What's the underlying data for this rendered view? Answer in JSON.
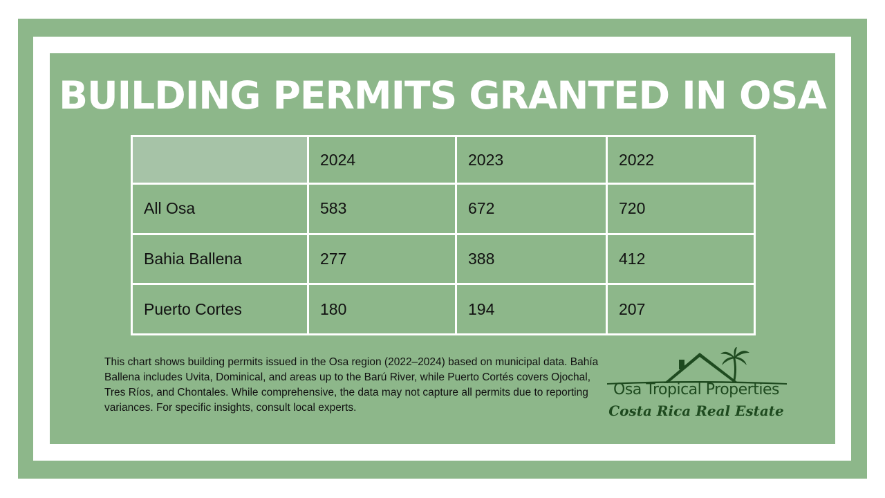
{
  "title": "BUILDING PERMITS GRANTED IN OSA",
  "chart_data": {
    "type": "table",
    "columns": [
      "",
      "2024",
      "2023",
      "2022"
    ],
    "rows": [
      {
        "label": "All Osa",
        "values": [
          "583",
          "672",
          "720"
        ]
      },
      {
        "label": "Bahia Ballena",
        "values": [
          "277",
          "388",
          "412"
        ]
      },
      {
        "label": "Puerto Cortes",
        "values": [
          "180",
          "194",
          "207"
        ]
      }
    ]
  },
  "note": "This chart shows building permits issued in the Osa region (2022–2024) based on municipal data. Bahía Ballena includes Uvita, Dominical, and areas up to the Barú River, while Puerto Cortés covers Ojochal, Tres Ríos, and Chontales. While comprehensive, the data may not capture all permits due to reporting variances. For specific insights, consult local experts.",
  "logo": {
    "name": "Osa Tropical Properties",
    "tagline": "Costa Rica Real Estate",
    "icon": "house-palm-icon"
  },
  "colors": {
    "background_green": "#8db78a",
    "header_cell": "#a6c3a7",
    "logo_green": "#1e4a1f",
    "title_text": "#ffffff"
  }
}
